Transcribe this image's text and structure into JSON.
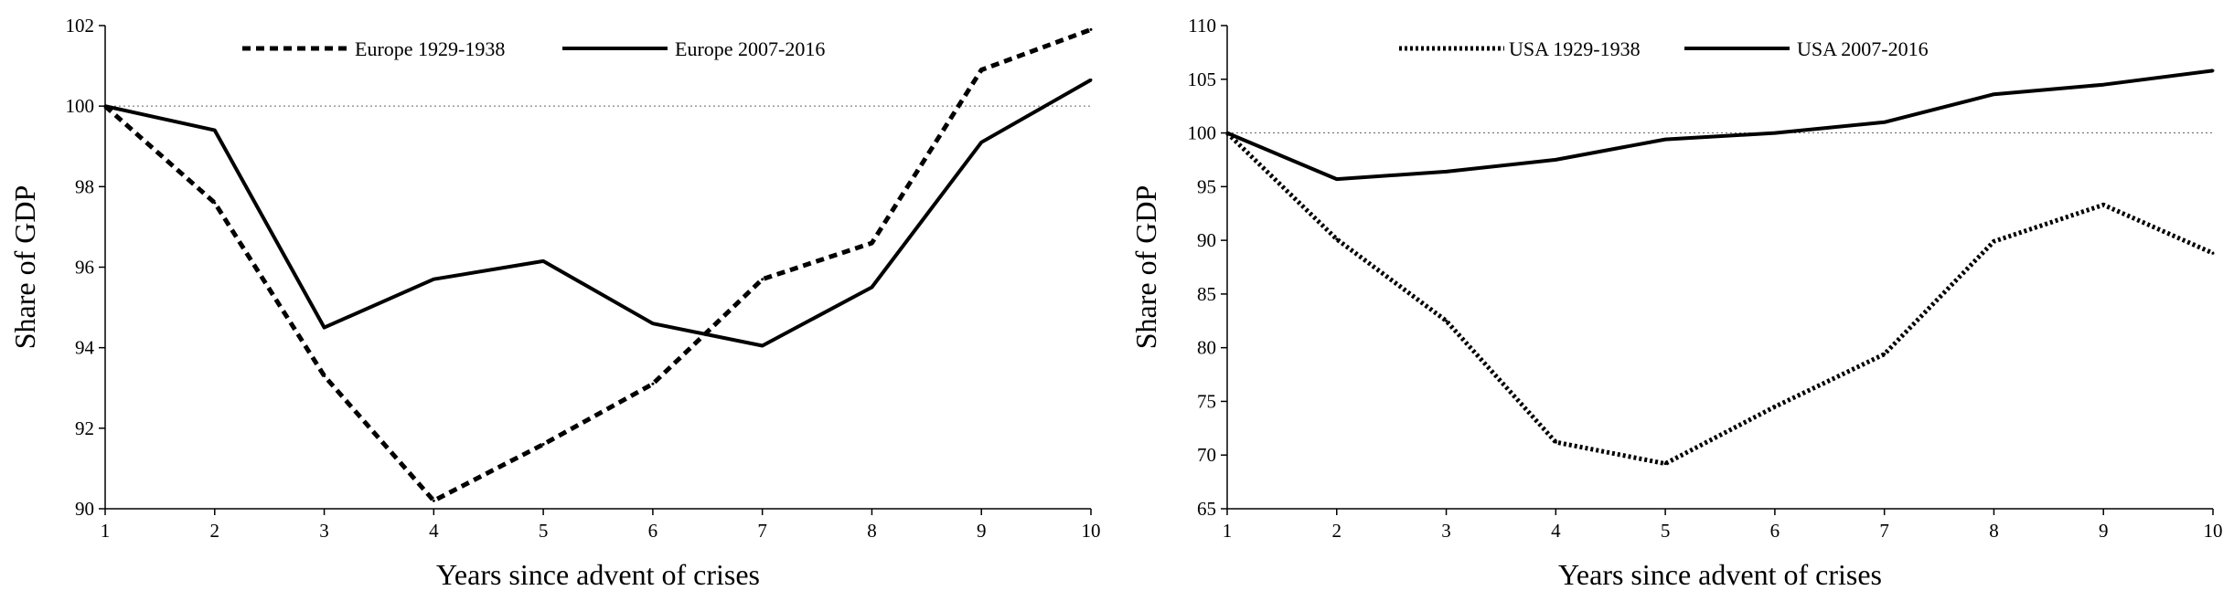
{
  "colors": {
    "line": "#000000",
    "reference": "#666666",
    "background": "#ffffff"
  },
  "chart_data": [
    {
      "type": "line",
      "title": "",
      "xlabel": "Years since advent of crises",
      "ylabel": "Share of GDP",
      "x": [
        1,
        2,
        3,
        4,
        5,
        6,
        7,
        8,
        9,
        10
      ],
      "xlim": [
        1,
        10
      ],
      "ylim": [
        90,
        102
      ],
      "yticks": [
        90,
        92,
        94,
        96,
        98,
        100,
        102
      ],
      "reference_line": 100,
      "legend_position": "top-center",
      "grid": false,
      "series": [
        {
          "name": "Europe 1929-1938",
          "style": "dashed",
          "values": [
            100,
            97.6,
            93.3,
            90.2,
            91.6,
            93.1,
            95.7,
            96.6,
            100.9,
            101.9
          ]
        },
        {
          "name": "Europe 2007-2016",
          "style": "solid",
          "values": [
            100,
            99.4,
            94.5,
            95.7,
            96.15,
            94.6,
            94.05,
            95.5,
            99.1,
            100.65
          ]
        }
      ]
    },
    {
      "type": "line",
      "title": "",
      "xlabel": "Years since advent of crises",
      "ylabel": "Share of GDP",
      "x": [
        1,
        2,
        3,
        4,
        5,
        6,
        7,
        8,
        9,
        10
      ],
      "xlim": [
        1,
        10
      ],
      "ylim": [
        65,
        110
      ],
      "yticks": [
        65,
        70,
        75,
        80,
        85,
        90,
        95,
        100,
        105,
        110
      ],
      "reference_line": 100,
      "legend_position": "top-center",
      "grid": false,
      "series": [
        {
          "name": "USA 1929-1938",
          "style": "dotted",
          "values": [
            100,
            90.1,
            82.5,
            71.2,
            69.2,
            74.5,
            79.4,
            89.9,
            93.3,
            88.8
          ]
        },
        {
          "name": "USA 2007-2016",
          "style": "solid",
          "values": [
            100,
            95.7,
            96.4,
            97.5,
            99.4,
            100.0,
            101.0,
            103.6,
            104.5,
            105.8
          ]
        }
      ]
    }
  ]
}
